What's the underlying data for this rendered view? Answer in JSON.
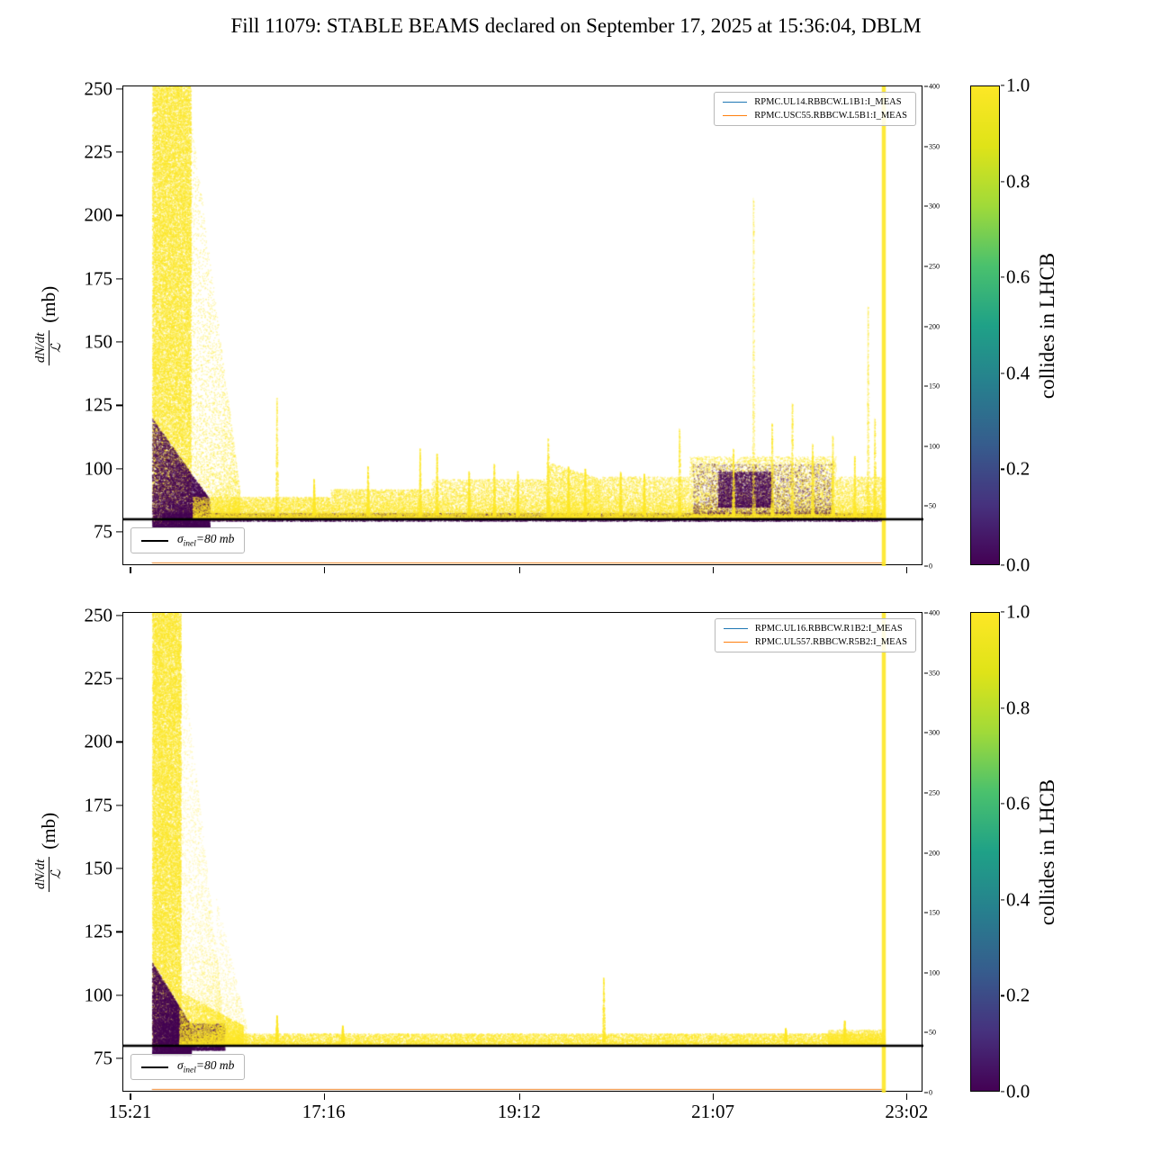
{
  "title": "Fill 11079: STABLE BEAMS declared on September 17, 2025 at 15:36:04, DBLM",
  "palette": {
    "point_yellow": "#fde725",
    "point_purple": "#440154",
    "legend_blue": "#1f77b4",
    "legend_orange": "#ff7f0e",
    "viridis": [
      "#440154",
      "#46327e",
      "#365c8d",
      "#277f8e",
      "#1fa187",
      "#4ac16d",
      "#a0da39",
      "#dfe318",
      "#fde725"
    ]
  },
  "x_axis": {
    "lim_minutes": [
      917,
      1392
    ],
    "ticks": [
      {
        "label": "15:21",
        "t": 921
      },
      {
        "label": "17:16",
        "t": 1036
      },
      {
        "label": "19:12",
        "t": 1152
      },
      {
        "label": "21:07",
        "t": 1267
      },
      {
        "label": "23:02",
        "t": 1382
      }
    ]
  },
  "chart_data": [
    {
      "type": "scatter",
      "name": "top",
      "ylabel": {
        "numerator": "dN/dt",
        "denominator": "ℒ",
        "unit": "(mb)"
      },
      "ylim": [
        61.5,
        251
      ],
      "yticks": [
        75,
        100,
        125,
        150,
        175,
        200,
        225,
        250
      ],
      "right_axis": {
        "lim": [
          0,
          400
        ],
        "ticks": [
          0,
          50,
          100,
          150,
          200,
          250,
          300,
          350,
          400
        ]
      },
      "colorbar": {
        "label": "collides in LHCB",
        "ticks": [
          "1.0",
          "0.8",
          "0.6",
          "0.4",
          "0.2",
          "0.0"
        ]
      },
      "legend": [
        {
          "label": "RPMC.UL14.RBBCW.L1B1:I_MEAS",
          "color": "#1f77b4"
        },
        {
          "label": "RPMC.USC55.RBBCW.L5B1:I_MEAS",
          "color": "#ff7f0e"
        }
      ],
      "sigma": {
        "symbol": "σ",
        "subscript": "inel",
        "rest": "=80 mb",
        "value": 80,
        "color": "#000000"
      },
      "bands": [
        {
          "t0": 934,
          "t1": 957,
          "lo": 78,
          "hi": 256,
          "n": 26000,
          "c": "y",
          "k": 0.95,
          "a": 0.5
        },
        {
          "t0": 955,
          "t1": 986,
          "lo": 80,
          "hi": 250,
          "hi2": 92,
          "n": 5200,
          "c": "y",
          "k": 2.2,
          "a": 0.35
        },
        {
          "t0": 934,
          "t1": 968,
          "lo": 77,
          "hi": 120,
          "hi2": 88,
          "n": 10000,
          "c": "p",
          "k": 1.5,
          "a": 0.5
        },
        {
          "t0": 940,
          "t1": 1369,
          "lo": 79.4,
          "hi": 82.6,
          "n": 14000,
          "c": "p",
          "k": 1.0,
          "a": 0.45
        },
        {
          "t0": 958,
          "t1": 1040,
          "lo": 80.5,
          "hi": 89,
          "n": 7000,
          "c": "y",
          "k": 1.8,
          "a": 0.4
        },
        {
          "t0": 1040,
          "t1": 1100,
          "lo": 80.5,
          "hi": 92,
          "n": 6000,
          "c": "y",
          "k": 1.9,
          "a": 0.4
        },
        {
          "t0": 1100,
          "t1": 1168,
          "lo": 80.5,
          "hi": 96,
          "n": 7000,
          "c": "y",
          "k": 2.0,
          "a": 0.4
        },
        {
          "t0": 1168,
          "t1": 1200,
          "lo": 80.5,
          "hi": 103,
          "hi2": 96,
          "n": 5200,
          "c": "y",
          "k": 2.0,
          "a": 0.42
        },
        {
          "t0": 1200,
          "t1": 1253,
          "lo": 80.5,
          "hi": 97,
          "n": 6200,
          "c": "y",
          "k": 2.0,
          "a": 0.4
        },
        {
          "t0": 1253,
          "t1": 1340,
          "lo": 81,
          "hi": 105,
          "n": 10000,
          "c": "y",
          "k": 2.0,
          "a": 0.42
        },
        {
          "t0": 1340,
          "t1": 1369,
          "lo": 81,
          "hi": 97,
          "n": 3200,
          "c": "y",
          "k": 2.0,
          "a": 0.4
        },
        {
          "t0": 1255,
          "t1": 1338,
          "lo": 82.5,
          "hi": 102,
          "n": 3000,
          "c": "p",
          "k": 1.6,
          "a": 0.3
        },
        {
          "t0": 1270,
          "t1": 1302,
          "lo": 85,
          "hi": 99,
          "n": 4200,
          "c": "p",
          "k": 1.2,
          "a": 0.4
        }
      ],
      "spikes": [
        {
          "t": 1008,
          "hi": 128
        },
        {
          "t": 1030,
          "hi": 96
        },
        {
          "t": 1062,
          "hi": 101
        },
        {
          "t": 1093,
          "hi": 108
        },
        {
          "t": 1103,
          "hi": 106
        },
        {
          "t": 1122,
          "hi": 99
        },
        {
          "t": 1137,
          "hi": 102
        },
        {
          "t": 1151,
          "hi": 99
        },
        {
          "t": 1169,
          "hi": 112,
          "w": 2.2
        },
        {
          "t": 1181,
          "hi": 101
        },
        {
          "t": 1191,
          "hi": 100
        },
        {
          "t": 1212,
          "hi": 99
        },
        {
          "t": 1226,
          "hi": 98
        },
        {
          "t": 1247,
          "hi": 116
        },
        {
          "t": 1279,
          "hi": 108
        },
        {
          "t": 1291,
          "hi": 207
        },
        {
          "t": 1302,
          "hi": 118
        },
        {
          "t": 1314,
          "hi": 126
        },
        {
          "t": 1326,
          "hi": 110
        },
        {
          "t": 1338,
          "hi": 113
        },
        {
          "t": 1351,
          "hi": 105
        },
        {
          "t": 1359,
          "hi": 164
        },
        {
          "t": 1363,
          "hi": 120
        }
      ],
      "end_line": {
        "t": 1368.5,
        "halfwidth_min": 1.2
      },
      "trace_lines": [
        {
          "color": "#1f77b4",
          "axis": "right",
          "value": 3
        },
        {
          "color": "#ff7f0e",
          "axis": "right",
          "value": 3
        }
      ]
    },
    {
      "type": "scatter",
      "name": "bottom",
      "ylabel": {
        "numerator": "dN/dt",
        "denominator": "ℒ",
        "unit": "(mb)"
      },
      "ylim": [
        61.5,
        251
      ],
      "yticks": [
        75,
        100,
        125,
        150,
        175,
        200,
        225,
        250
      ],
      "right_axis": {
        "lim": [
          0,
          400
        ],
        "ticks": [
          0,
          50,
          100,
          150,
          200,
          250,
          300,
          350,
          400
        ]
      },
      "colorbar": {
        "label": "collides in LHCB",
        "ticks": [
          "1.0",
          "0.8",
          "0.6",
          "0.4",
          "0.2",
          "0.0"
        ]
      },
      "legend": [
        {
          "label": "RPMC.UL16.RBBCW.R1B2:I_MEAS",
          "color": "#1f77b4"
        },
        {
          "label": "RPMC.UL557.RBBCW.R5B2:I_MEAS",
          "color": "#ff7f0e"
        }
      ],
      "sigma": {
        "symbol": "σ",
        "subscript": "inel",
        "rest": "=80 mb",
        "value": 80,
        "color": "#000000"
      },
      "bands": [
        {
          "t0": 934,
          "t1": 951,
          "lo": 79,
          "hi": 256,
          "n": 22000,
          "c": "y",
          "k": 0.95,
          "a": 0.5
        },
        {
          "t0": 949,
          "t1": 975,
          "lo": 82,
          "hi": 253,
          "hi2": 100,
          "n": 5200,
          "c": "y",
          "k": 2.4,
          "a": 0.22
        },
        {
          "t0": 972,
          "t1": 990,
          "lo": 81,
          "hi": 140,
          "hi2": 88,
          "n": 1600,
          "c": "y",
          "k": 2.4,
          "a": 0.2
        },
        {
          "t0": 934,
          "t1": 957,
          "lo": 76.5,
          "hi": 113,
          "hi2": 88,
          "n": 10500,
          "c": "p",
          "k": 1.5,
          "a": 0.5
        },
        {
          "t0": 955,
          "t1": 977,
          "lo": 78.5,
          "hi": 89,
          "n": 3000,
          "c": "p",
          "k": 1.4,
          "a": 0.4
        },
        {
          "t0": 950,
          "t1": 988,
          "lo": 80.3,
          "hi": 102,
          "hi2": 88,
          "n": 5200,
          "c": "y",
          "k": 1.7,
          "a": 0.45
        },
        {
          "t0": 988,
          "t1": 1369,
          "lo": 80.2,
          "hi": 85,
          "n": 17000,
          "c": "y",
          "k": 1.6,
          "a": 0.45
        },
        {
          "t0": 1335,
          "t1": 1369,
          "lo": 80.4,
          "hi": 86.5,
          "n": 1800,
          "c": "y",
          "k": 1.6,
          "a": 0.4
        }
      ],
      "spikes": [
        {
          "t": 1008,
          "hi": 92
        },
        {
          "t": 1047,
          "hi": 88
        },
        {
          "t": 1202,
          "hi": 107
        },
        {
          "t": 1310,
          "hi": 87
        },
        {
          "t": 1345,
          "hi": 90
        }
      ],
      "end_line": {
        "t": 1368.5,
        "halfwidth_min": 1.2
      },
      "trace_lines": [
        {
          "color": "#1f77b4",
          "axis": "right",
          "value": 3
        },
        {
          "color": "#ff7f0e",
          "axis": "right",
          "value": 3
        }
      ]
    }
  ]
}
